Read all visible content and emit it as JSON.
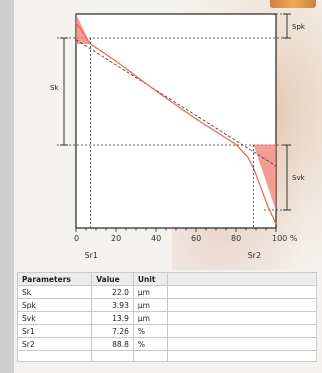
{
  "chart_data": {
    "type": "line",
    "title": "",
    "xlabel": "",
    "ylabel": "",
    "xlim": [
      0,
      100
    ],
    "x_unit": "%",
    "x_ticks": [
      "0",
      "20",
      "40",
      "60",
      "80",
      "100 %"
    ],
    "material_ratio_curve": {
      "x": [
        0,
        3,
        7.26,
        20,
        40,
        60,
        80,
        86,
        88.8,
        92,
        96,
        100
      ],
      "description_values": "normalized height (1 = top of profile, 0 = bottom)",
      "y": [
        0.96,
        0.92,
        0.86,
        0.78,
        0.64,
        0.51,
        0.39,
        0.33,
        0.28,
        0.2,
        0.1,
        0.02
      ]
    },
    "equivalent_line": {
      "x": [
        0,
        100
      ],
      "y": [
        0.88,
        0.29
      ]
    },
    "markers": {
      "Sr1": 7.26,
      "Sr2": 88.8
    },
    "side_labels": {
      "left": "Sk",
      "right_top": "Spk",
      "right_bottom": "Svk"
    },
    "colors": {
      "curve": "#e8705a",
      "fill": "#f07a70",
      "equivalent_line": "#333333"
    }
  },
  "axis": {
    "sr1_label": "Sr1",
    "sr2_label": "Sr2"
  },
  "table": {
    "headers": [
      "Parameters",
      "Value",
      "Unit"
    ],
    "rows": [
      {
        "param": "Sk",
        "value": "22.0",
        "unit": "µm"
      },
      {
        "param": "Spk",
        "value": "3.93",
        "unit": "µm"
      },
      {
        "param": "Svk",
        "value": "13.9",
        "unit": "µm"
      },
      {
        "param": "Sr1",
        "value": "7.26",
        "unit": "%"
      },
      {
        "param": "Sr2",
        "value": "88.8",
        "unit": "%"
      }
    ]
  }
}
